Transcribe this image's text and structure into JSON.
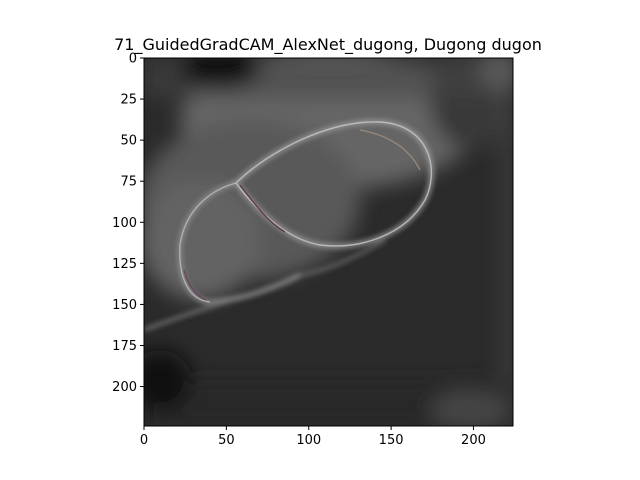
{
  "figure": {
    "title": "71_GuidedGradCAM_AlexNet_dugong, Dugong dugon",
    "image_description_icon": "guided-gradcam-heatmap",
    "colors": {
      "background": "#ffffff",
      "image_base": "#2a2a2a",
      "highlight": "#8c8c8c",
      "axis": "#000000"
    }
  },
  "axes": {
    "xlim": [
      0,
      224
    ],
    "ylim": [
      224,
      0
    ],
    "x_ticks": [
      0,
      50,
      100,
      150,
      200
    ],
    "y_ticks": [
      0,
      25,
      50,
      75,
      100,
      125,
      150,
      175,
      200
    ],
    "x_tick_labels": [
      "0",
      "50",
      "100",
      "150",
      "200"
    ],
    "y_tick_labels": [
      "0",
      "25",
      "50",
      "75",
      "100",
      "125",
      "150",
      "175",
      "200"
    ]
  }
}
